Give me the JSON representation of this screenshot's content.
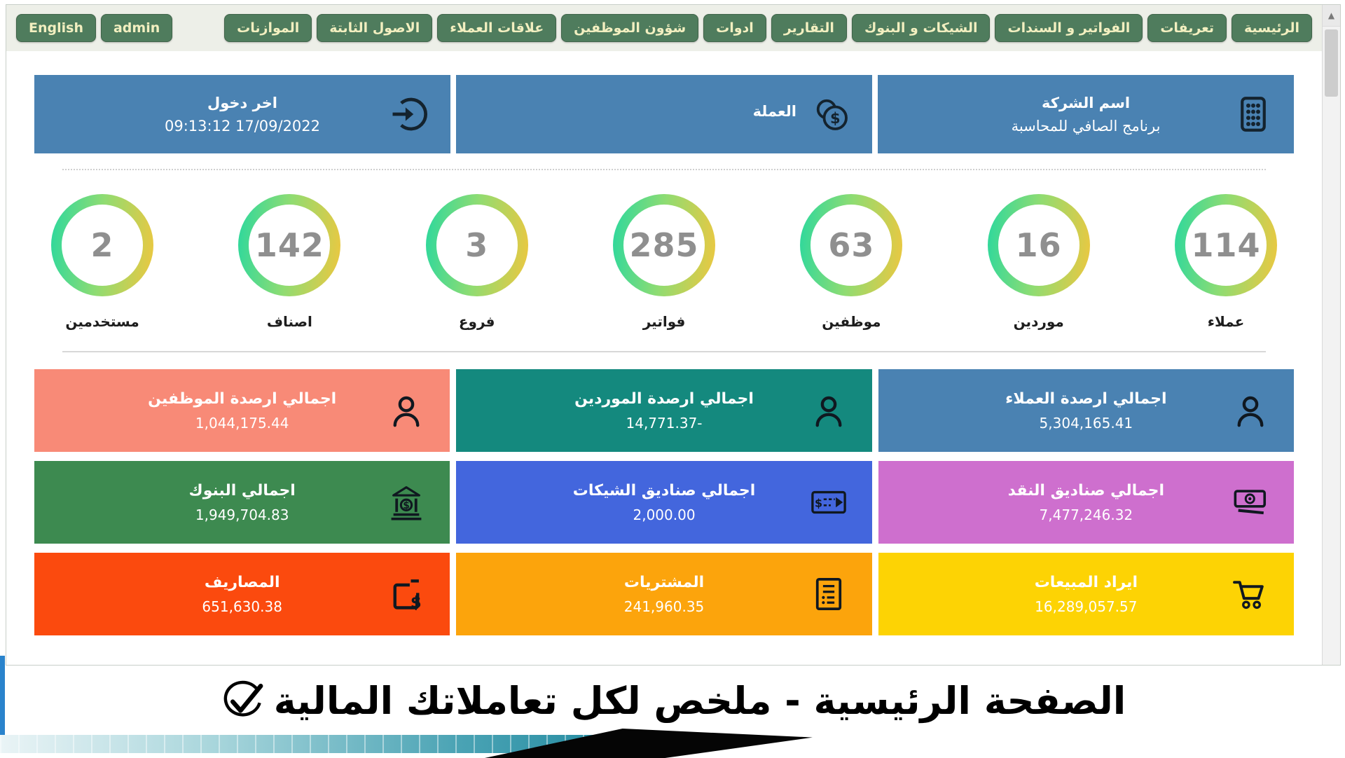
{
  "nav": {
    "items": [
      "الرئيسية",
      "تعريفات",
      "الفواتير و السندات",
      "الشيكات و البنوك",
      "التقارير",
      "ادوات",
      "شؤون الموظفين",
      "علاقات العملاء",
      "الاصول الثابتة",
      "الموازنات"
    ],
    "user_buttons": [
      "English",
      "admin"
    ]
  },
  "header_cards": [
    {
      "title": "اسم الشركة",
      "value": "برنامج الصافي للمحاسبة",
      "icon": "keypad-icon"
    },
    {
      "title": "العملة",
      "value": "",
      "icon": "coins-icon"
    },
    {
      "title": "اخر دخول",
      "value": "09:13:12 17/09/2022",
      "icon": "login-icon"
    }
  ],
  "stats": [
    {
      "value": "114",
      "label": "عملاء"
    },
    {
      "value": "16",
      "label": "موردين"
    },
    {
      "value": "63",
      "label": "موظفين"
    },
    {
      "value": "285",
      "label": "فواتير"
    },
    {
      "value": "3",
      "label": "فروع"
    },
    {
      "value": "142",
      "label": "اصناف"
    },
    {
      "value": "2",
      "label": "مستخدمين"
    }
  ],
  "tiles": [
    {
      "label": "اجمالي ارصدة العملاء",
      "value": "5,304,165.41",
      "color": "#4a82b2",
      "icon": "person-icon"
    },
    {
      "label": "اجمالي ارصدة الموردين",
      "value": "14,771.37-",
      "color": "#14897e",
      "icon": "person-icon"
    },
    {
      "label": "اجمالي ارصدة الموظفين",
      "value": "1,044,175.44",
      "color": "#f88a77",
      "icon": "person-icon"
    },
    {
      "label": "اجمالي صناديق النقد",
      "value": "7,477,246.32",
      "color": "#ce6fce",
      "icon": "banknote-icon"
    },
    {
      "label": "اجمالي صناديق الشيكات",
      "value": "2,000.00",
      "color": "#4366dd",
      "icon": "cheque-icon"
    },
    {
      "label": "اجمالي البنوك",
      "value": "1,949,704.83",
      "color": "#3d8a50",
      "icon": "bank-icon"
    },
    {
      "label": "ايراد المبيعات",
      "value": "16,289,057.57",
      "color": "#fdd304",
      "icon": "cart-icon"
    },
    {
      "label": "المشتريات",
      "value": "241,960.35",
      "color": "#fca40c",
      "icon": "receipt-icon"
    },
    {
      "label": "المصاريف",
      "value": "651,630.38",
      "color": "#fb4a0e",
      "icon": "expense-icon"
    }
  ],
  "caption": {
    "text": "الصفحة الرئيسية - ملخص لكل تعاملاتك المالية"
  },
  "scrollbar": {
    "up_arrow": "▲"
  }
}
